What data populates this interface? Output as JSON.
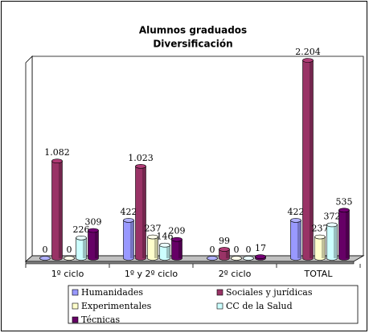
{
  "chart_data": {
    "type": "bar3d",
    "title": "Alumnos graduados",
    "subtitle": "Diversificación",
    "categories": [
      "1º ciclo",
      "1º y 2º ciclo",
      "2º ciclo",
      "TOTAL"
    ],
    "series": [
      {
        "name": "Humanidades",
        "color": "#9999ff",
        "values": [
          0,
          422,
          0,
          422
        ],
        "value_labels": [
          "0",
          "422",
          "0",
          "422"
        ]
      },
      {
        "name": "Sociales y jurídicas",
        "color": "#993366",
        "values": [
          1082,
          1023,
          99,
          2204
        ],
        "value_labels": [
          "1.082",
          "1.023",
          "99",
          "2.204"
        ]
      },
      {
        "name": "Experimentales",
        "color": "#ffffcc",
        "values": [
          0,
          237,
          0,
          237
        ],
        "value_labels": [
          "0",
          "237",
          "0",
          "237"
        ]
      },
      {
        "name": "CC de la Salud",
        "color": "#ccffff",
        "values": [
          226,
          146,
          0,
          372
        ],
        "value_labels": [
          "226",
          "146",
          "0",
          "372"
        ]
      },
      {
        "name": "Técnicas",
        "color": "#660066",
        "values": [
          309,
          209,
          17,
          535
        ],
        "value_labels": [
          "309",
          "209",
          "17",
          "535"
        ]
      }
    ]
  }
}
